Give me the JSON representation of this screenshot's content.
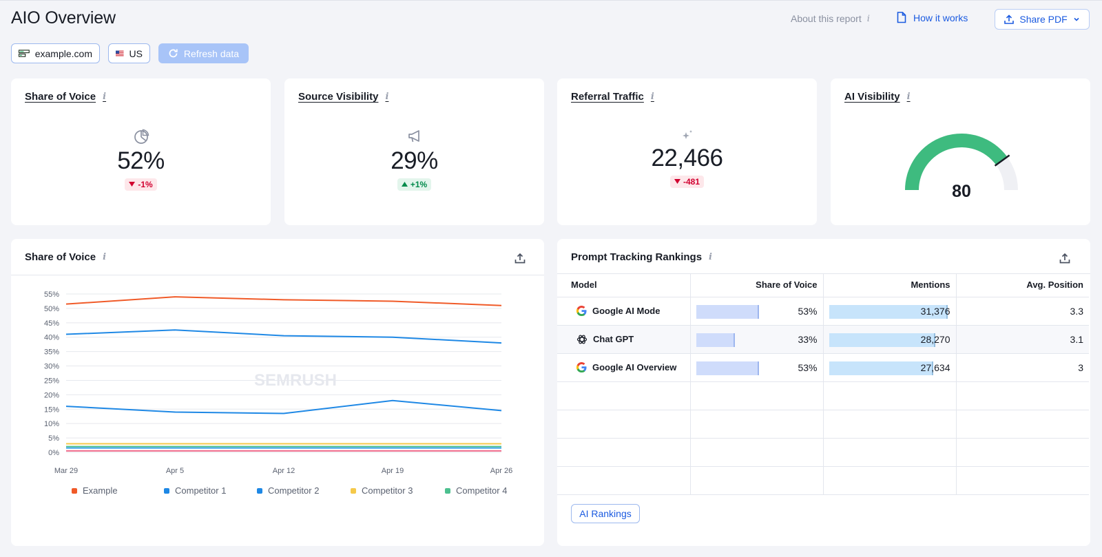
{
  "header": {
    "title": "AIO Overview",
    "about": "About this report",
    "how": "How it works",
    "share": "Share PDF"
  },
  "filters": {
    "domain": "example.com",
    "country": "US",
    "refresh": "Refresh data"
  },
  "kpis": {
    "sov": {
      "title": "Share of Voice",
      "value": "52%",
      "delta": "-1%"
    },
    "source": {
      "title": "Source Visibility",
      "value": "29%",
      "delta": "+1%"
    },
    "referral": {
      "title": "Referral Traffic",
      "value": "22,466",
      "delta": "-481"
    },
    "ai": {
      "title": "AI Visibility",
      "value": "80",
      "score": 80,
      "max": 100
    }
  },
  "sov_panel": {
    "title": "Share of Voice",
    "watermark": "SEMRUSH"
  },
  "chart_data": {
    "type": "line",
    "title": "Share of Voice",
    "x": [
      "Mar 29",
      "Apr 5",
      "Apr 12",
      "Apr 19",
      "Apr 26"
    ],
    "y_ticks": [
      "0%",
      "5%",
      "10%",
      "15%",
      "20%",
      "25%",
      "30%",
      "35%",
      "40%",
      "45%",
      "50%",
      "55%"
    ],
    "ylim": [
      0,
      55
    ],
    "grid": true,
    "legend_position": "bottom",
    "series": [
      {
        "name": "Example",
        "color": "#f05a28",
        "values": [
          51.5,
          54,
          53,
          52.5,
          51
        ]
      },
      {
        "name": "Competitor 1",
        "color": "#1e88e5",
        "values": [
          41,
          42.5,
          40.5,
          40,
          38
        ]
      },
      {
        "name": "Competitor 2",
        "color": "#1e88e5",
        "values": [
          16,
          14,
          13.5,
          18,
          14.5
        ]
      },
      {
        "name": "Competitor 3",
        "color": "#f5c94a",
        "values": [
          3,
          3,
          3,
          3,
          3
        ]
      },
      {
        "name": "Competitor 4",
        "color": "#4cc08f",
        "values": [
          2,
          2,
          2,
          2,
          2
        ]
      },
      {
        "name": "",
        "color": "#4aa8ef",
        "values": [
          1.5,
          1.5,
          1.5,
          1.5,
          1.5
        ]
      },
      {
        "name": "",
        "color": "#f06a8a",
        "values": [
          0.5,
          0.5,
          0.5,
          0.5,
          0.5
        ]
      }
    ]
  },
  "prompt_panel": {
    "title": "Prompt Tracking Rankings",
    "columns": [
      "Model",
      "Share of Voice",
      "Mentions",
      "Avg. Position"
    ],
    "rows": [
      {
        "model": "Google AI Mode",
        "icon": "google-icon",
        "sov": "53%",
        "sov_fraction": 0.53,
        "mentions": "31,376",
        "mentions_fraction": 1.0,
        "avg": "3.3"
      },
      {
        "model": "Chat GPT",
        "icon": "openai-icon",
        "sov": "33%",
        "sov_fraction": 0.33,
        "mentions": "28,270",
        "mentions_fraction": 0.901,
        "avg": "3.1"
      },
      {
        "model": "Google AI Overview",
        "icon": "google-icon",
        "sov": "53%",
        "sov_fraction": 0.53,
        "mentions": "27,634",
        "mentions_fraction": 0.881,
        "avg": "3"
      }
    ],
    "button": "AI Rankings"
  }
}
